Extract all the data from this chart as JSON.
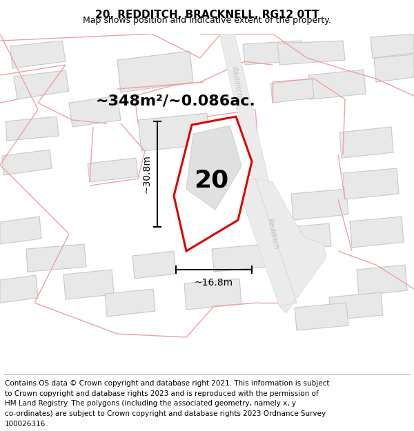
{
  "title": "20, REDDITCH, BRACKNELL, RG12 0TT",
  "subtitle": "Map shows position and indicative extent of the property.",
  "footer_lines": [
    "Contains OS data © Crown copyright and database right 2021. This information is subject",
    "to Crown copyright and database rights 2023 and is reproduced with the permission of",
    "HM Land Registry. The polygons (including the associated geometry, namely x, y",
    "co-ordinates) are subject to Crown copyright and database rights 2023 Ordnance Survey",
    "100026316."
  ],
  "area_text": "~348m²/~0.086ac.",
  "width_label": "~16.8m",
  "height_label": "~30.8m",
  "plot_number": "20",
  "background_color": "#ffffff",
  "building_fill": "#e8e8e8",
  "building_edge": "#c8c8c8",
  "road_fill": "#e8e8e8",
  "road_edge": "#d0d0d0",
  "plot_outline_color": "#dd0000",
  "plot_fill": "#ffffff",
  "pink_line_color": "#f0a0a0",
  "road_label_color": "#c0c0c0",
  "dim_line_color": "#000000",
  "title_fontsize": 11,
  "subtitle_fontsize": 9,
  "area_fontsize": 16,
  "number_fontsize": 26,
  "dim_fontsize": 10,
  "footer_fontsize": 7.5
}
